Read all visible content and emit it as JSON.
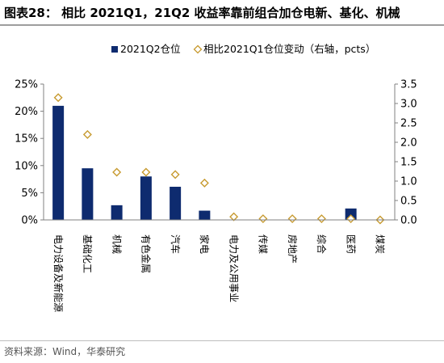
{
  "title": "图表28： 相比 2021Q1，21Q2 收益率靠前组合加仓电新、基化、机械",
  "source": "资料来源：Wind，华泰研究",
  "colors": {
    "bar": "#0e2b6f",
    "marker": "#c79a2f",
    "axis": "#808080",
    "rule": "#9e9e9e"
  },
  "chart_data": {
    "type": "bar",
    "categories": [
      "电力设备及新能源",
      "基础化工",
      "机械",
      "有色金属",
      "汽车",
      "家电",
      "电力及公用事业",
      "传媒",
      "房地产",
      "综合",
      "医药",
      "煤炭"
    ],
    "series": [
      {
        "name": "2021Q2仓位",
        "type": "bar",
        "axis": "left",
        "values": [
          21.0,
          9.5,
          2.7,
          8.0,
          6.1,
          1.7,
          0.0,
          0.0,
          0.0,
          0.0,
          2.1,
          0.0
        ]
      },
      {
        "name": "相比2021Q1仓位变动（右轴，pcts）",
        "type": "scatter",
        "marker": "diamond",
        "axis": "right",
        "values": [
          3.15,
          2.2,
          1.23,
          1.23,
          1.17,
          0.95,
          0.08,
          0.03,
          0.03,
          0.03,
          0.03,
          0.0
        ]
      }
    ],
    "left_axis": {
      "min": 0,
      "max": 25,
      "step": 5,
      "ticks": [
        "0%",
        "5%",
        "10%",
        "15%",
        "20%",
        "25%"
      ]
    },
    "right_axis": {
      "min": 0,
      "max": 3.5,
      "step": 0.5,
      "ticks": [
        "0.0",
        "0.5",
        "1.0",
        "1.5",
        "2.0",
        "2.5",
        "3.0",
        "3.5"
      ]
    },
    "legend": "top-center",
    "grid": false
  }
}
